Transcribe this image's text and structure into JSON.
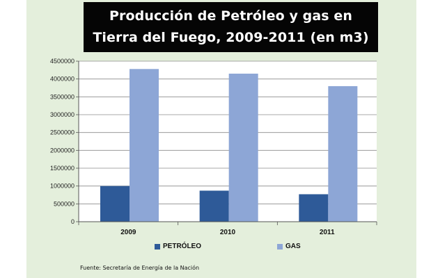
{
  "chart_data": {
    "type": "bar",
    "title_lines": [
      "Producción de Petróleo y gas en",
      "Tierra del Fuego, 2009-2011 (en m3)"
    ],
    "categories": [
      "2009",
      "2010",
      "2011"
    ],
    "series": [
      {
        "name": "PETRÓLEO",
        "values": [
          1000000,
          870000,
          770000
        ],
        "color": "#2e5a98"
      },
      {
        "name": "GAS",
        "values": [
          4280000,
          4150000,
          3800000
        ],
        "color": "#8da6d6"
      }
    ],
    "ylim": [
      0,
      4500000
    ],
    "yticks": [
      "0",
      "500000",
      "1000000",
      "1500000",
      "2000000",
      "2500000",
      "3000000",
      "3500000",
      "4000000",
      "4500000"
    ],
    "grid": true,
    "legend_position": "bottom",
    "source": "Fuente: Secretaría de Energía de la Nación"
  }
}
